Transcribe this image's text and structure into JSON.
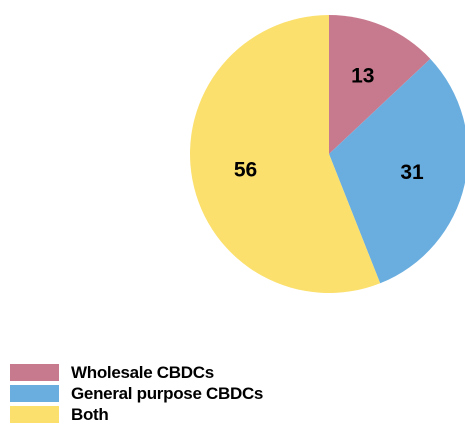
{
  "chart_data": {
    "type": "pie",
    "title": "",
    "start": "12 o'clock",
    "direction": "clockwise",
    "slices": [
      {
        "label": "Wholesale CBDCs",
        "value": 13,
        "color": "#c77a8d"
      },
      {
        "label": "General purpose CBDCs",
        "value": 31,
        "color": "#6aaee0"
      },
      {
        "label": "Both",
        "value": 56,
        "color": "#fbe06e"
      }
    ],
    "legend_position": "bottom-left"
  }
}
